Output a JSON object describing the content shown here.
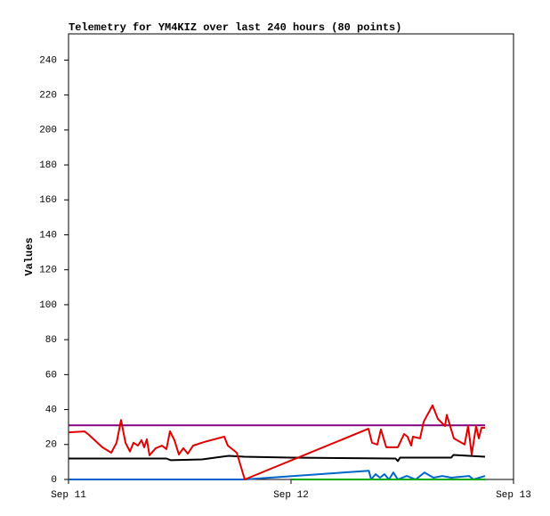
{
  "chart_data": {
    "type": "line",
    "title": "Telemetry for YM4KIZ over last 240 hours (80 points)",
    "y_label": "Values",
    "xlim": [
      0,
      2
    ],
    "xticks": [
      {
        "value": 0,
        "label": "Sep 11"
      },
      {
        "value": 1,
        "label": "Sep 12"
      },
      {
        "value": 2,
        "label": "Sep 13"
      }
    ],
    "ylim": [
      0,
      255
    ],
    "yticks": [
      0,
      20,
      40,
      60,
      80,
      100,
      120,
      140,
      160,
      180,
      200,
      220,
      240
    ],
    "series": [
      {
        "color": "#800080",
        "x": [
          0,
          1.872
        ],
        "values": [
          31,
          31
        ]
      },
      {
        "color": "#000000",
        "x": [
          0,
          0.44,
          0.46,
          0.6,
          0.72,
          0.79,
          1.0,
          1.47,
          1.48,
          1.49,
          1.72,
          1.73,
          1.872
        ],
        "values": [
          12,
          12,
          11,
          11.5,
          13.5,
          13,
          12.5,
          12,
          10.5,
          12.5,
          12.5,
          14,
          13
        ]
      },
      {
        "color": "#0066cc",
        "x": [
          0,
          0.79,
          1.35,
          1.36,
          1.38,
          1.4,
          1.42,
          1.44,
          1.46,
          1.48,
          1.52,
          1.56,
          1.6,
          1.64,
          1.68,
          1.72,
          1.8,
          1.82,
          1.872
        ],
        "values": [
          0,
          0,
          5,
          0,
          3,
          1,
          3,
          0,
          4,
          0,
          2,
          0,
          4,
          1,
          2,
          1,
          2,
          0,
          2
        ]
      },
      {
        "color": "#00aa00",
        "x": [
          1.0,
          1.872
        ],
        "values": [
          0,
          0
        ]
      },
      {
        "color": "#e00000",
        "x": [
          0,
          0.072,
          0.092,
          0.152,
          0.192,
          0.216,
          0.236,
          0.256,
          0.276,
          0.292,
          0.312,
          0.328,
          0.34,
          0.352,
          0.364,
          0.392,
          0.42,
          0.44,
          0.456,
          0.476,
          0.496,
          0.516,
          0.536,
          0.56,
          0.612,
          0.7,
          0.716,
          0.756,
          0.792,
          1.348,
          1.364,
          1.388,
          1.404,
          1.428,
          1.48,
          1.508,
          1.524,
          1.54,
          1.548,
          1.58,
          1.596,
          1.636,
          1.66,
          1.692,
          1.7,
          1.732,
          1.78,
          1.796,
          1.812,
          1.832,
          1.844,
          1.856,
          1.872
        ],
        "values": [
          27,
          27.5,
          25.5,
          18.4,
          15.3,
          21,
          34,
          21,
          16,
          21,
          19.4,
          22.5,
          18.4,
          23,
          13.8,
          17.9,
          19.4,
          17.4,
          27.6,
          22.5,
          14.3,
          17.9,
          14.8,
          19.4,
          21.5,
          24.5,
          19.4,
          15.3,
          0,
          29,
          21,
          20,
          28.6,
          18.4,
          18.4,
          26,
          24.5,
          19.4,
          24.5,
          23.5,
          33,
          42.4,
          34.7,
          30.6,
          37,
          23.5,
          20,
          30.6,
          14.3,
          30.6,
          23.5,
          29.6,
          29.6
        ]
      }
    ]
  }
}
